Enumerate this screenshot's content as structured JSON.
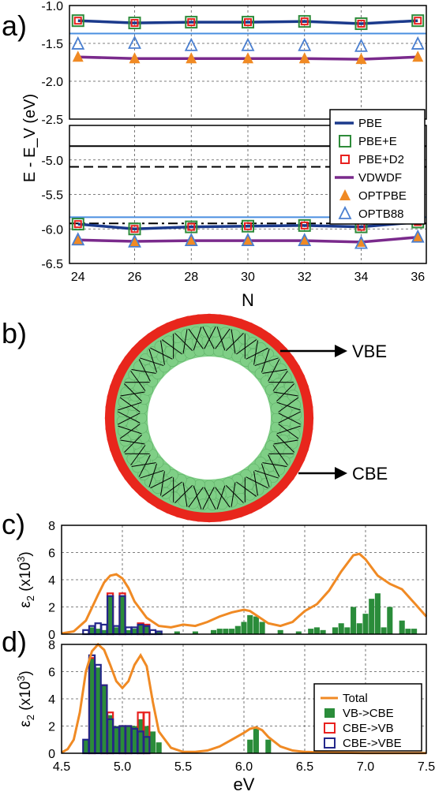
{
  "chart_data": [
    {
      "panel": "a)",
      "type": "line",
      "xlabel": "N",
      "ylabel": "E - E_V (eV)",
      "x": [
        24,
        26,
        28,
        30,
        32,
        34,
        36
      ],
      "x_ticks": [
        24,
        26,
        28,
        30,
        32,
        34,
        36
      ],
      "upper_ylim": [
        -2.5,
        -1.0
      ],
      "upper_y_ticks": [
        "-1.0",
        "-1.5",
        "-2.0",
        "-2.5"
      ],
      "lower_ylim": [
        -6.5,
        -4.5
      ],
      "lower_y_ticks": [
        "-5.0",
        "-5.5",
        "-6.0",
        "-6.5"
      ],
      "grid": true,
      "legend_position": "right-middle",
      "series": [
        {
          "name": "PBE",
          "marker": "none",
          "color": "#1b3a8c",
          "group": "upper",
          "values": [
            -1.2,
            -1.23,
            -1.22,
            -1.22,
            -1.21,
            -1.24,
            -1.2
          ]
        },
        {
          "name": "PBE",
          "marker": "none",
          "color": "#1b3a8c",
          "group": "lower",
          "values": [
            -5.93,
            -6.0,
            -5.97,
            -5.96,
            -5.95,
            -5.97,
            -5.9
          ]
        },
        {
          "name": "PBE+E",
          "marker": "square-open",
          "color": "#2e8b3a",
          "group": "upper",
          "values": [
            -1.2,
            -1.23,
            -1.22,
            -1.22,
            -1.21,
            -1.24,
            -1.2
          ]
        },
        {
          "name": "PBE+E",
          "marker": "square-open",
          "color": "#2e8b3a",
          "group": "lower",
          "values": [
            -5.93,
            -6.0,
            -5.97,
            -5.96,
            -5.95,
            -5.97,
            -5.9
          ]
        },
        {
          "name": "PBE+D2",
          "marker": "square-open-small",
          "color": "#e8201e",
          "group": "upper",
          "values": [
            -1.2,
            -1.23,
            -1.22,
            -1.22,
            -1.21,
            -1.24,
            -1.2
          ]
        },
        {
          "name": "PBE+D2",
          "marker": "square-open-small",
          "color": "#e8201e",
          "group": "lower",
          "values": [
            -5.93,
            -6.0,
            -5.97,
            -5.96,
            -5.95,
            -5.97,
            -5.9
          ]
        },
        {
          "name": "VDWDF",
          "marker": "none",
          "color": "#7a2a8c",
          "group": "upper",
          "values": [
            -1.68,
            -1.7,
            -1.7,
            -1.7,
            -1.7,
            -1.71,
            -1.68
          ]
        },
        {
          "name": "VDWDF",
          "marker": "none",
          "color": "#7a2a8c",
          "group": "lower",
          "values": [
            -6.16,
            -6.18,
            -6.17,
            -6.17,
            -6.17,
            -6.19,
            -6.12
          ]
        },
        {
          "name": "OPTPBE",
          "marker": "triangle-filled",
          "color": "#f08a24",
          "group": "upper",
          "values": [
            -1.68,
            -1.7,
            -1.7,
            -1.7,
            -1.7,
            -1.71,
            -1.68
          ]
        },
        {
          "name": "OPTPBE",
          "marker": "triangle-filled",
          "color": "#f08a24",
          "group": "lower",
          "values": [
            -6.16,
            -6.18,
            -6.17,
            -6.17,
            -6.17,
            -6.19,
            -6.12
          ]
        },
        {
          "name": "OPTB88",
          "marker": "triangle-open",
          "color": "#4a7fd0",
          "group": "upper",
          "values": [
            -1.51,
            -1.5,
            -1.53,
            -1.53,
            -1.53,
            -1.54,
            -1.51
          ]
        },
        {
          "name": "OPTB88",
          "marker": "triangle-open",
          "color": "#4a7fd0",
          "group": "lower",
          "values": [
            -6.16,
            -6.19,
            -6.17,
            -6.17,
            -6.17,
            -6.21,
            -6.12
          ]
        }
      ],
      "reference_lines": [
        {
          "y": -1.37,
          "style": "solid",
          "color": "#4a8fe0"
        },
        {
          "y": -4.8,
          "style": "solid",
          "color": "#000000"
        },
        {
          "y": -5.1,
          "style": "dashed",
          "color": "#000000"
        },
        {
          "y": -5.83,
          "style": "solid",
          "color": "#4a8fe0"
        },
        {
          "y": -5.92,
          "style": "dashdot",
          "color": "#000000"
        }
      ]
    },
    {
      "panel": "b)",
      "type": "other",
      "annotations": [
        "VBE",
        "CBE"
      ],
      "colors": {
        "outer_ring": "#e8261c",
        "inner_atoms": "#7fcf86",
        "bonds": "#000000"
      }
    },
    {
      "panel": "c)",
      "type": "bar+line",
      "ylabel": "ε2 (x10^3)",
      "xlim": [
        4.5,
        7.5
      ],
      "ylim": [
        0,
        8
      ],
      "y_ticks": [
        "0",
        "2",
        "4",
        "6",
        "8"
      ],
      "grid": true,
      "total_curve": {
        "color": "#f08a24",
        "x": [
          4.5,
          4.6,
          4.7,
          4.8,
          4.85,
          4.9,
          4.95,
          5.0,
          5.05,
          5.1,
          5.2,
          5.3,
          5.4,
          5.5,
          5.6,
          5.7,
          5.8,
          5.9,
          6.0,
          6.05,
          6.1,
          6.2,
          6.3,
          6.4,
          6.5,
          6.6,
          6.7,
          6.8,
          6.9,
          6.95,
          7.0,
          7.1,
          7.2,
          7.3,
          7.4,
          7.5
        ],
        "y": [
          0.05,
          0.2,
          1.0,
          2.9,
          3.8,
          4.3,
          4.4,
          4.1,
          3.4,
          2.4,
          1.2,
          0.6,
          0.5,
          0.7,
          0.6,
          0.9,
          1.3,
          1.6,
          1.8,
          1.7,
          1.4,
          0.8,
          0.6,
          0.9,
          1.7,
          2.2,
          3.2,
          4.6,
          5.8,
          5.9,
          5.5,
          4.3,
          3.7,
          3.3,
          2.3,
          1.3
        ]
      },
      "bars": [
        {
          "name": "VB->CBE",
          "color": "#2a8c3a",
          "edge": "#2a8c3a",
          "x": [
            4.75,
            4.8,
            4.85,
            4.9,
            4.95,
            5.0,
            5.05,
            5.1,
            5.15,
            5.2,
            5.3,
            5.45,
            5.6,
            5.75,
            5.8,
            5.85,
            5.9,
            5.95,
            6.0,
            6.05,
            6.1,
            6.15,
            6.3,
            6.45,
            6.55,
            6.6,
            6.65,
            6.75,
            6.8,
            6.85,
            6.9,
            6.95,
            7.0,
            7.05,
            7.1,
            7.15,
            7.2,
            7.3,
            7.35,
            7.4
          ],
          "values": [
            0.5,
            0.4,
            0.3,
            2.8,
            0.5,
            2.8,
            0.3,
            0.4,
            0.8,
            0.6,
            0.2,
            0.2,
            0.2,
            0.3,
            0.4,
            0.4,
            0.4,
            0.6,
            0.9,
            1.4,
            1.3,
            0.9,
            0.3,
            0.2,
            0.4,
            0.5,
            0.3,
            0.5,
            0.8,
            0.5,
            2.0,
            0.8,
            1.5,
            2.6,
            3.0,
            0.5,
            2.0,
            1.0,
            0.4,
            0.4
          ]
        },
        {
          "name": "CBE->VB",
          "color": "none",
          "edge": "#e8201e",
          "x": [
            4.9,
            5.0,
            5.15,
            5.2
          ],
          "values": [
            3.0,
            3.0,
            0.8,
            0.7
          ]
        },
        {
          "name": "CBE->VBE",
          "color": "none",
          "edge": "#23278a",
          "x": [
            4.7,
            4.75,
            4.8,
            4.85,
            4.9,
            4.95,
            5.0,
            5.05,
            5.1,
            5.15,
            5.2,
            5.25,
            5.3
          ],
          "values": [
            0.3,
            0.6,
            0.8,
            0.7,
            2.8,
            0.6,
            2.8,
            0.5,
            0.5,
            0.7,
            0.6,
            0.3,
            0.2
          ]
        }
      ]
    },
    {
      "panel": "d)",
      "type": "bar+line",
      "ylabel": "ε2 (x10^3)",
      "xlabel": "eV",
      "xlim": [
        4.5,
        7.5
      ],
      "ylim": [
        0,
        8
      ],
      "x_ticks": [
        "4.5",
        "5.0",
        "5.5",
        "6.0",
        "6.5",
        "7.0",
        "7.5"
      ],
      "y_ticks": [
        "0",
        "2",
        "4",
        "6",
        "8"
      ],
      "grid": true,
      "legend_position": "bottom-right",
      "legend": [
        "Total",
        "VB->CBE",
        "CBE->VB",
        "CBE->VBE"
      ],
      "total_curve": {
        "color": "#f08a24",
        "x": [
          4.5,
          4.55,
          4.6,
          4.65,
          4.7,
          4.75,
          4.8,
          4.85,
          4.9,
          4.95,
          5.0,
          5.05,
          5.1,
          5.15,
          5.2,
          5.25,
          5.3,
          5.4,
          5.5,
          5.6,
          5.7,
          5.8,
          5.9,
          6.0,
          6.05,
          6.1,
          6.15,
          6.2,
          6.3,
          6.4,
          6.5,
          6.7,
          7.0,
          7.5
        ],
        "y": [
          0.05,
          0.3,
          1.0,
          3.0,
          6.0,
          7.5,
          8.0,
          7.6,
          6.5,
          5.3,
          4.8,
          5.3,
          6.5,
          7.2,
          6.4,
          3.8,
          1.6,
          0.4,
          0.1,
          0.1,
          0.2,
          0.5,
          1.0,
          1.5,
          1.8,
          1.9,
          1.7,
          1.2,
          0.5,
          0.2,
          0.1,
          0.05,
          0.02,
          0.02
        ]
      },
      "bars": [
        {
          "name": "VB->CBE",
          "color": "#2a8c3a",
          "edge": "#2a8c3a",
          "x": [
            4.7,
            4.75,
            4.8,
            4.85,
            4.9,
            4.95,
            5.0,
            5.05,
            5.1,
            5.15,
            5.2,
            5.25,
            5.3,
            6.05,
            6.1,
            6.2
          ],
          "values": [
            1.0,
            7.0,
            6.3,
            5.0,
            2.8,
            2.0,
            2.0,
            2.0,
            2.0,
            2.5,
            2.0,
            1.6,
            0.8,
            1.0,
            1.8,
            1.0
          ]
        },
        {
          "name": "CBE->VB",
          "color": "none",
          "edge": "#e8201e",
          "x": [
            4.75,
            4.85,
            4.9,
            5.0,
            5.05,
            5.15,
            5.2
          ],
          "values": [
            7.0,
            5.0,
            3.0,
            2.0,
            2.0,
            3.0,
            3.0
          ]
        },
        {
          "name": "CBE->VBE",
          "color": "none",
          "edge": "#23278a",
          "x": [
            4.7,
            4.75,
            4.8,
            4.85,
            4.9,
            4.95,
            5.0,
            5.05,
            5.1,
            5.15,
            5.2
          ],
          "values": [
            1.0,
            7.2,
            6.5,
            5.0,
            2.5,
            1.9,
            2.0,
            2.0,
            1.8,
            1.6,
            1.2
          ]
        }
      ]
    }
  ]
}
